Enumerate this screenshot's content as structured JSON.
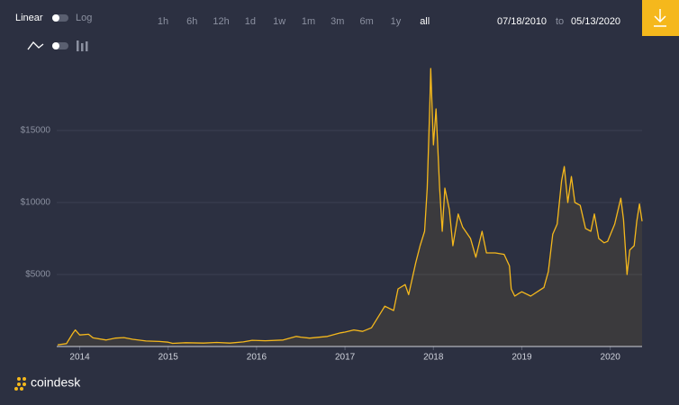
{
  "controls": {
    "scale_labels": [
      "Linear",
      "Log"
    ],
    "ranges": [
      "1h",
      "6h",
      "12h",
      "1d",
      "1w",
      "1m",
      "3m",
      "6m",
      "1y",
      "all"
    ],
    "selected_range": 9,
    "date_from": "07/18/2010",
    "date_sep": "to",
    "date_to": "05/13/2020",
    "brand": "coindesk"
  },
  "chart_data": {
    "type": "area",
    "log_scale": false,
    "grid": true,
    "color": "#f5b81c",
    "xlim": [
      2013.74,
      2020.36
    ],
    "xticks": [
      2014,
      2015,
      2016,
      2017,
      2018,
      2019,
      2020
    ],
    "ylim": [
      0,
      20000
    ],
    "yticks": [
      {
        "value": 5000,
        "label": "$5000"
      },
      {
        "value": 10000,
        "label": "$10000"
      },
      {
        "value": 15000,
        "label": "$15000"
      }
    ],
    "x": [
      2013.75,
      2013.85,
      2013.92,
      2013.95,
      2014.0,
      2014.1,
      2014.15,
      2014.3,
      2014.4,
      2014.5,
      2014.6,
      2014.75,
      2014.9,
      2015.0,
      2015.05,
      2015.2,
      2015.4,
      2015.55,
      2015.7,
      2015.85,
      2015.95,
      2016.1,
      2016.3,
      2016.45,
      2016.5,
      2016.6,
      2016.8,
      2016.95,
      2017.0,
      2017.1,
      2017.2,
      2017.3,
      2017.4,
      2017.45,
      2017.55,
      2017.6,
      2017.68,
      2017.72,
      2017.8,
      2017.85,
      2017.9,
      2017.93,
      2017.96,
      2017.97,
      2018.0,
      2018.03,
      2018.07,
      2018.1,
      2018.13,
      2018.18,
      2018.22,
      2018.28,
      2018.33,
      2018.42,
      2018.48,
      2018.55,
      2018.6,
      2018.7,
      2018.8,
      2018.86,
      2018.88,
      2018.92,
      2018.97,
      2019.0,
      2019.1,
      2019.2,
      2019.25,
      2019.3,
      2019.35,
      2019.4,
      2019.45,
      2019.48,
      2019.52,
      2019.56,
      2019.6,
      2019.66,
      2019.72,
      2019.78,
      2019.82,
      2019.87,
      2019.93,
      2019.97,
      2020.05,
      2020.1,
      2020.12,
      2020.15,
      2020.19,
      2020.22,
      2020.27,
      2020.3,
      2020.33,
      2020.36
    ],
    "values": [
      120,
      200,
      900,
      1150,
      800,
      850,
      600,
      450,
      580,
      620,
      500,
      380,
      350,
      300,
      220,
      260,
      240,
      280,
      240,
      320,
      430,
      400,
      450,
      700,
      650,
      580,
      700,
      950,
      1000,
      1150,
      1050,
      1300,
      2300,
      2800,
      2500,
      4000,
      4300,
      3600,
      5800,
      7000,
      8000,
      11000,
      17000,
      19300,
      14000,
      16500,
      11000,
      8000,
      11000,
      9500,
      7000,
      9200,
      8300,
      7500,
      6200,
      8000,
      6500,
      6500,
      6400,
      5600,
      4000,
      3500,
      3700,
      3800,
      3500,
      3900,
      4100,
      5200,
      7800,
      8500,
      11500,
      12500,
      10000,
      11800,
      10000,
      9800,
      8200,
      8000,
      9200,
      7500,
      7200,
      7300,
      8500,
      9800,
      10300,
      8800,
      5000,
      6700,
      7000,
      8700,
      9900,
      8700
    ]
  }
}
